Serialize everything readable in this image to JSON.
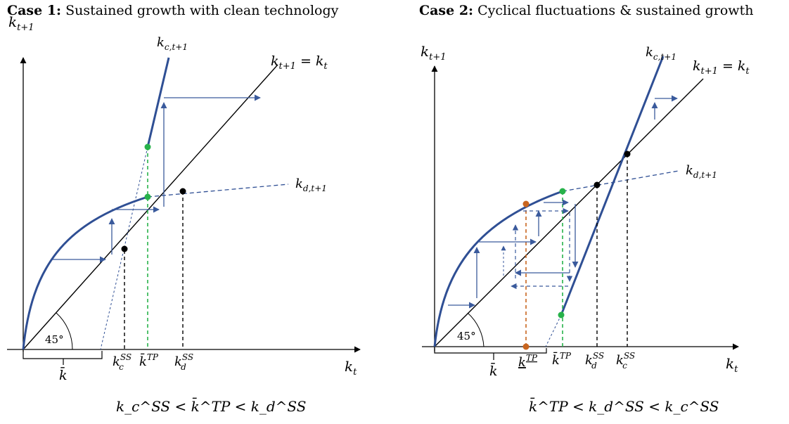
{
  "case1": {
    "title_bold": "Case 1:",
    "title_text": "Sustained growth with clean technology",
    "y_label_main": "k",
    "y_label_sub": "t+1",
    "x_label_main": "k",
    "x_label_sub": "t",
    "diag_label": "k_{t+1} = k_t",
    "diag_label_a": "k",
    "diag_label_a_sub": "t+1",
    "diag_label_eq": " = ",
    "diag_label_b": "k",
    "diag_label_b_sub": "t",
    "kc_label_main": "k",
    "kc_label_sub": "c,t+1",
    "kd_label_main": "k",
    "kd_label_sub": "d,t+1",
    "angle_label": "45°",
    "tick_kbar": "k̄",
    "tick_kcss_main": "k",
    "tick_kcss_sup": "SS",
    "tick_kcss_sub": "c",
    "tick_ktp_main": "k̄",
    "tick_ktp_sup": "TP",
    "tick_kdss_main": "k",
    "tick_kdss_sup": "SS",
    "tick_kdss_sub": "d",
    "condition": "k_c^SS < k̄^TP < k_d^SS"
  },
  "case2": {
    "title_bold": "Case 2:",
    "title_text": "Cyclical fluctuations & sustained growth",
    "y_label_main": "k",
    "y_label_sub": "t+1",
    "x_label_main": "k",
    "x_label_sub": "t",
    "diag_label_a": "k",
    "diag_label_a_sub": "t+1",
    "diag_label_eq": " = ",
    "diag_label_b": "k",
    "diag_label_b_sub": "t",
    "kc_label_main": "k",
    "kc_label_sub": "c,t+1",
    "kd_label_main": "k",
    "kd_label_sub": "d,t+1",
    "angle_label": "45°",
    "tick_kbar": "k̄",
    "tick_kltp_main": "k",
    "tick_kltp_sup": "TP",
    "tick_ktp_main": "k̄",
    "tick_ktp_sup": "TP",
    "tick_kdss_main": "k",
    "tick_kdss_sup": "SS",
    "tick_kdss_sub": "d",
    "tick_kcss_main": "k",
    "tick_kcss_sup": "SS",
    "tick_kcss_sub": "c",
    "condition": "k̄^TP < k_d^SS < k_c^SS"
  },
  "colors": {
    "curve": "#2f4f94",
    "arrow": "#3a5a9c",
    "green": "#27b24a",
    "orange": "#c8651f",
    "black": "#000000"
  }
}
